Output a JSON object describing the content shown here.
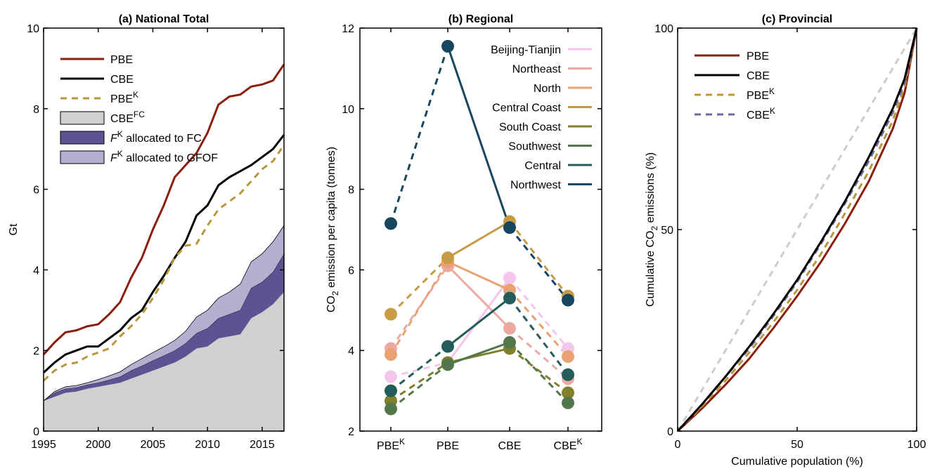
{
  "chart_data": [
    {
      "panel": "a",
      "type": "line",
      "title": "(a) National Total",
      "xlabel": "",
      "ylabel": "Gt",
      "xlim": [
        1995,
        2017
      ],
      "ylim": [
        0,
        10
      ],
      "xticks": [
        "1995",
        "2000",
        "2005",
        "2010",
        "2015"
      ],
      "yticks": [
        "0",
        "2",
        "4",
        "6",
        "8",
        "10"
      ],
      "legend": "top-left",
      "x": [
        1995,
        1996,
        1997,
        1998,
        1999,
        2000,
        2001,
        2002,
        2003,
        2004,
        2005,
        2006,
        2007,
        2008,
        2009,
        2010,
        2011,
        2012,
        2013,
        2014,
        2015,
        2016,
        2017
      ],
      "series": [
        {
          "name": "PBE",
          "sup": "",
          "style": "line",
          "color": "#8B1E0E",
          "values": [
            1.9,
            2.2,
            2.45,
            2.5,
            2.6,
            2.65,
            2.9,
            3.2,
            3.8,
            4.3,
            5.0,
            5.6,
            6.3,
            6.6,
            6.9,
            7.4,
            8.1,
            8.3,
            8.35,
            8.55,
            8.6,
            8.7,
            9.1
          ]
        },
        {
          "name": "CBE",
          "sup": "",
          "style": "line",
          "color": "#000000",
          "values": [
            1.45,
            1.7,
            1.9,
            2.0,
            2.1,
            2.1,
            2.3,
            2.5,
            2.8,
            3.0,
            3.45,
            3.85,
            4.3,
            4.7,
            5.35,
            5.6,
            6.1,
            6.3,
            6.45,
            6.6,
            6.8,
            7.0,
            7.35
          ]
        },
        {
          "name": "PBE",
          "sup": "K",
          "style": "dashed",
          "color": "#B8963A",
          "values": [
            1.25,
            1.5,
            1.65,
            1.7,
            1.85,
            1.95,
            2.05,
            2.35,
            2.6,
            2.9,
            3.3,
            3.75,
            4.3,
            4.6,
            4.65,
            5.1,
            5.5,
            5.7,
            5.9,
            6.2,
            6.5,
            6.7,
            7.1
          ]
        }
      ],
      "areas": [
        {
          "name": "CBE",
          "sup": "FC",
          "color": "#D0D0D0",
          "values": [
            0.75,
            0.85,
            0.95,
            0.98,
            1.05,
            1.1,
            1.15,
            1.2,
            1.3,
            1.4,
            1.5,
            1.6,
            1.7,
            1.85,
            2.05,
            2.1,
            2.3,
            2.35,
            2.4,
            2.8,
            2.95,
            3.15,
            3.45
          ]
        },
        {
          "name": "F",
          "sup": "K",
          "suffix": " allocated to FC",
          "color": "#5C5393",
          "values": [
            0.0,
            0.1,
            0.1,
            0.1,
            0.1,
            0.1,
            0.12,
            0.15,
            0.2,
            0.22,
            0.25,
            0.27,
            0.3,
            0.33,
            0.38,
            0.45,
            0.5,
            0.55,
            0.6,
            0.75,
            0.75,
            0.8,
            0.95
          ]
        },
        {
          "name": "F",
          "sup": "K",
          "suffix": " allocated to GFOF",
          "color": "#B3AFD0",
          "values": [
            0.0,
            0.03,
            0.05,
            0.05,
            0.05,
            0.08,
            0.1,
            0.12,
            0.15,
            0.18,
            0.2,
            0.22,
            0.25,
            0.3,
            0.4,
            0.45,
            0.5,
            0.55,
            0.65,
            0.65,
            0.7,
            0.75,
            0.7
          ]
        }
      ]
    },
    {
      "panel": "b",
      "type": "line",
      "title": "(b) Regional",
      "xlabel": "",
      "ylabel": "CO₂ emission per capita (tonnes)",
      "ylim": [
        2,
        12
      ],
      "yticks": [
        "2",
        "4",
        "6",
        "8",
        "10",
        "12"
      ],
      "categories": [
        {
          "main": "PBE",
          "sup": "K"
        },
        {
          "main": "PBE",
          "sup": ""
        },
        {
          "main": "CBE",
          "sup": ""
        },
        {
          "main": "CBE",
          "sup": "K"
        }
      ],
      "legend": "top-right",
      "series": [
        {
          "name": "Beijing-Tianjin",
          "color": "#F4C6EC",
          "values": [
            3.35,
            3.7,
            5.8,
            4.05
          ]
        },
        {
          "name": "Northeast",
          "color": "#EBA9A1",
          "values": [
            4.05,
            6.1,
            4.55,
            3.3
          ]
        },
        {
          "name": "North",
          "color": "#E8A171",
          "values": [
            3.9,
            6.2,
            5.5,
            3.85
          ]
        },
        {
          "name": "Central Coast",
          "color": "#C79B44",
          "values": [
            4.9,
            6.3,
            7.2,
            5.35
          ]
        },
        {
          "name": "South Coast",
          "color": "#7F7F2C",
          "values": [
            2.75,
            3.7,
            4.05,
            2.95
          ]
        },
        {
          "name": "Southwest",
          "color": "#53774A",
          "values": [
            2.55,
            3.65,
            4.2,
            2.7
          ]
        },
        {
          "name": "Central",
          "color": "#245C5B",
          "values": [
            3.0,
            4.1,
            5.3,
            3.4
          ]
        },
        {
          "name": "Northwest",
          "color": "#17465F",
          "values": [
            7.15,
            11.55,
            7.05,
            5.25
          ]
        }
      ]
    },
    {
      "panel": "c",
      "type": "line",
      "title": "(c) Provincial",
      "xlabel": "Cumulative population (%)",
      "ylabel": "Cumulative CO₂ emissions (%)",
      "xlim": [
        0,
        100
      ],
      "ylim": [
        0,
        100
      ],
      "xticks": [
        "0",
        "50",
        "100"
      ],
      "yticks": [
        "0",
        "50",
        "100"
      ],
      "legend": "top-left",
      "x": [
        0,
        10,
        20,
        30,
        40,
        50,
        60,
        70,
        80,
        90,
        95,
        100
      ],
      "series": [
        {
          "name": "PBE",
          "sup": "",
          "style": "line",
          "color": "#8B1E0E",
          "values": [
            0,
            5.5,
            11.5,
            18,
            25.5,
            33.5,
            42,
            51.5,
            62,
            75,
            84,
            100
          ]
        },
        {
          "name": "CBE",
          "sup": "",
          "style": "line",
          "color": "#000000",
          "values": [
            0,
            6.5,
            13.5,
            21,
            29,
            37.5,
            47,
            57,
            68,
            80,
            87.5,
            100
          ]
        },
        {
          "name": "PBE",
          "sup": "K",
          "style": "dashed",
          "color": "#B8963A",
          "values": [
            0,
            6,
            12.5,
            19.5,
            27,
            35,
            44,
            54,
            64.5,
            77,
            85.5,
            100
          ]
        },
        {
          "name": "CBE",
          "sup": "K",
          "style": "dashed",
          "color": "#6F6A9E",
          "values": [
            0,
            6.5,
            13.5,
            20.5,
            28.5,
            37,
            46.5,
            56.5,
            67,
            79,
            86.5,
            100
          ]
        },
        {
          "name": "",
          "sup": "",
          "style": "dashed",
          "color": "#CCCCCC",
          "legend": false,
          "values": [
            0,
            10,
            20,
            30,
            40,
            50,
            60,
            70,
            80,
            90,
            95,
            100
          ]
        }
      ]
    }
  ]
}
